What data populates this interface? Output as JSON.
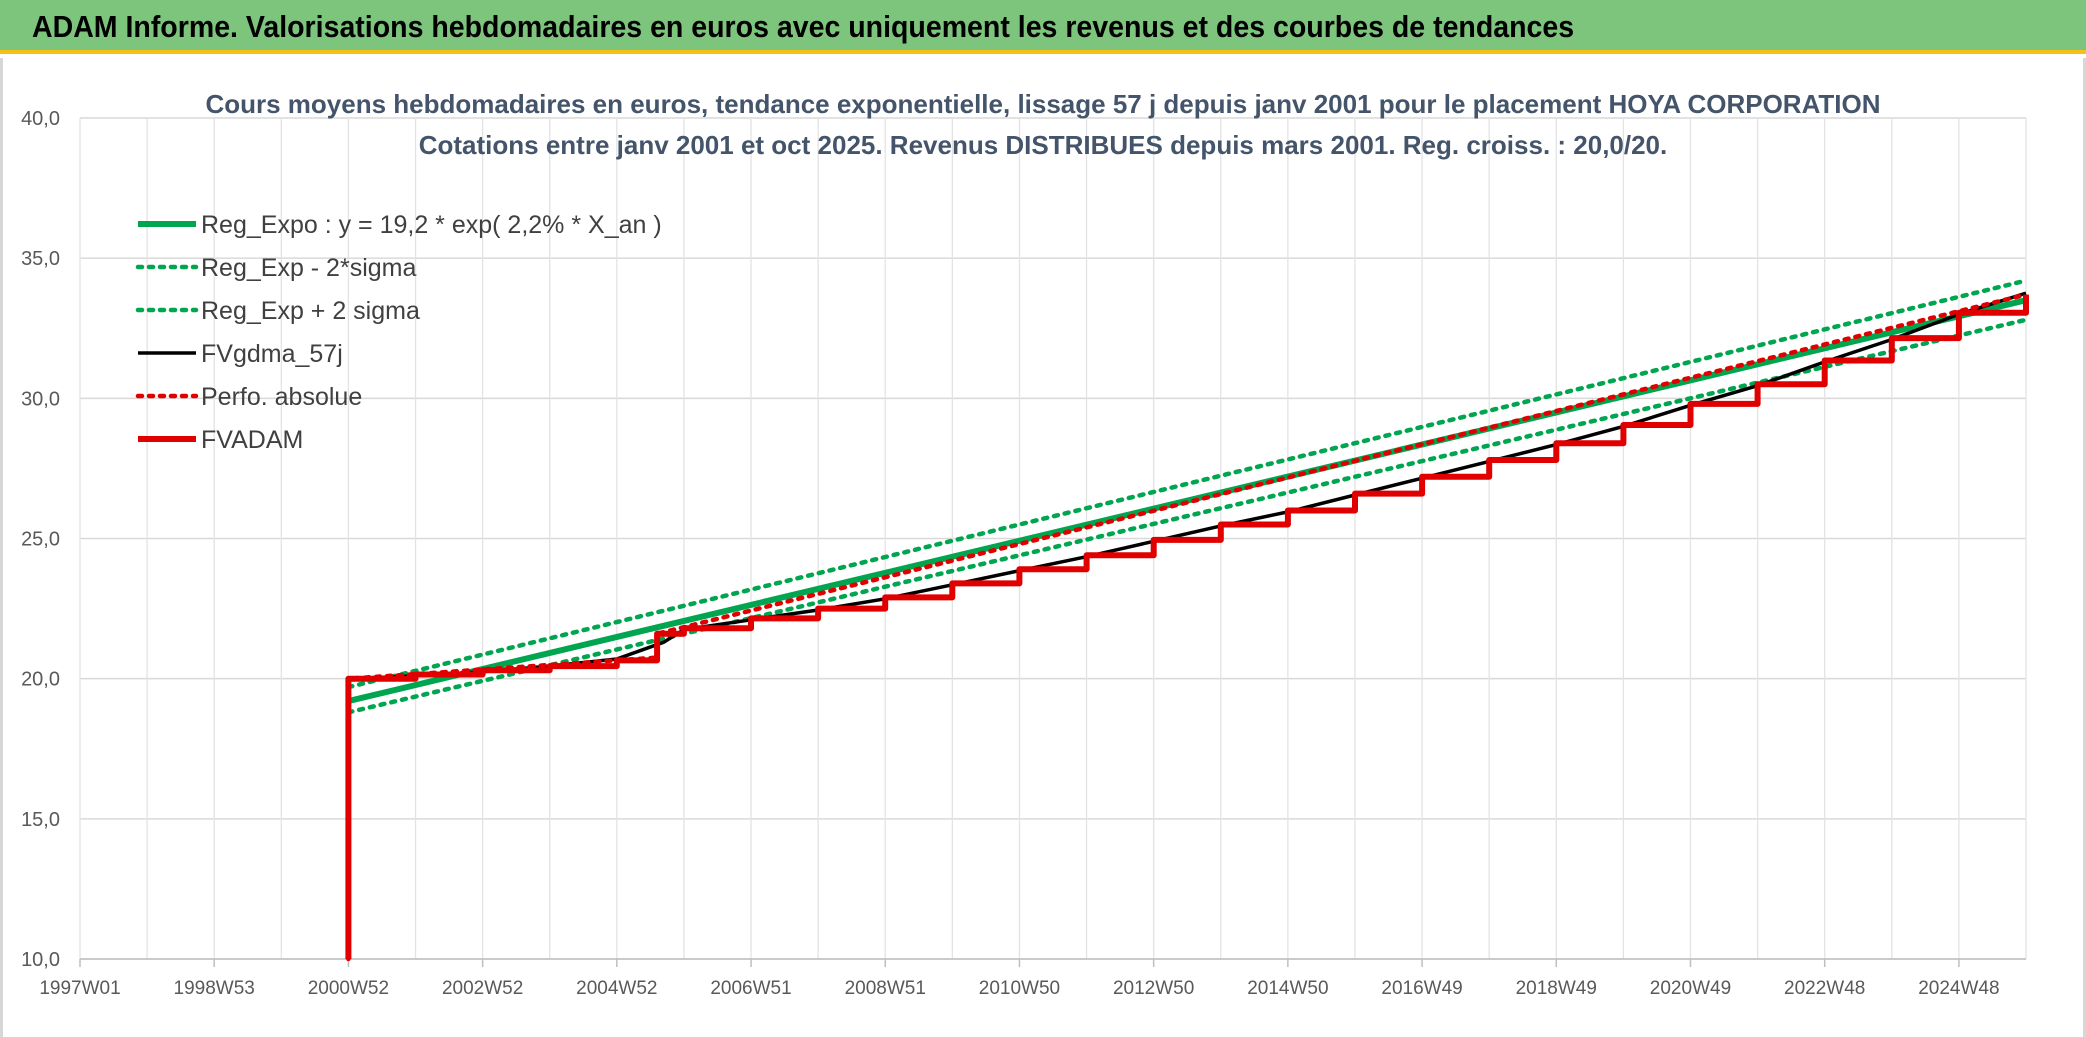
{
  "banner": {
    "title": "ADAM Informe. Valorisations hebdomadaires en euros avec uniquement les revenus et des courbes de tendances",
    "color": "#7dc47d",
    "accent": "#f2c21b"
  },
  "chart_data": {
    "type": "line",
    "title_line1": "Cours moyens hebdomadaires en euros, tendance exponentielle, lissage 57 j depuis janv 2001 pour le placement HOYA CORPORATION",
    "title_line2": "Cotations entre janv 2001 et oct 2025. Revenus DISTRIBUES depuis mars 2001. Reg. croiss. : 20,0/20.",
    "xlabel": "",
    "ylabel": "",
    "ylim": [
      10,
      40
    ],
    "xlim": [
      1997.0,
      2026.0
    ],
    "y_ticks": [
      "10,0",
      "15,0",
      "20,0",
      "25,0",
      "30,0",
      "35,0",
      "40,0"
    ],
    "x_ticks": [
      {
        "label": "1997W01",
        "x": 1997.0
      },
      {
        "label": "1998W53",
        "x": 1999.0
      },
      {
        "label": "2000W52",
        "x": 2001.0
      },
      {
        "label": "2002W52",
        "x": 2003.0
      },
      {
        "label": "2004W52",
        "x": 2005.0
      },
      {
        "label": "2006W51",
        "x": 2007.0
      },
      {
        "label": "2008W51",
        "x": 2009.0
      },
      {
        "label": "2010W50",
        "x": 2011.0
      },
      {
        "label": "2012W50",
        "x": 2013.0
      },
      {
        "label": "2014W50",
        "x": 2015.0
      },
      {
        "label": "2016W49",
        "x": 2017.0
      },
      {
        "label": "2018W49",
        "x": 2019.0
      },
      {
        "label": "2020W49",
        "x": 2021.0
      },
      {
        "label": "2022W48",
        "x": 2023.0
      },
      {
        "label": "2024W48",
        "x": 2025.0
      }
    ],
    "grid": true,
    "legend_position": "top-left",
    "series": [
      {
        "name": "Reg_Expo : y = 19,2 * exp( 2,2% *  X_an )",
        "color": "#00a550",
        "style": "solid-thick",
        "x": [
          2001.0,
          2026.0
        ],
        "y": [
          19.2,
          33.5
        ]
      },
      {
        "name": "Reg_Exp - 2*sigma",
        "color": "#00a550",
        "style": "dotted",
        "x": [
          2001.0,
          2026.0
        ],
        "y": [
          18.8,
          32.8
        ]
      },
      {
        "name": "Reg_Exp + 2 sigma",
        "color": "#00a550",
        "style": "dotted",
        "x": [
          2001.0,
          2026.0
        ],
        "y": [
          19.7,
          34.2
        ]
      },
      {
        "name": "FVgdma_57j",
        "color": "#000000",
        "style": "solid",
        "x": [
          2001.0,
          2001.0,
          2002.0,
          2003.0,
          2004.0,
          2005.0,
          2005.7,
          2006.0,
          2007.0,
          2008.0,
          2009.0,
          2010.0,
          2011.0,
          2012.0,
          2013.0,
          2014.0,
          2015.0,
          2016.0,
          2017.0,
          2018.0,
          2019.0,
          2020.0,
          2021.0,
          2022.0,
          2023.0,
          2024.0,
          2025.0,
          2026.0
        ],
        "y": [
          10.0,
          20.0,
          20.1,
          20.25,
          20.45,
          20.7,
          21.3,
          21.75,
          22.1,
          22.45,
          22.85,
          23.35,
          23.85,
          24.35,
          24.9,
          25.45,
          25.95,
          26.55,
          27.15,
          27.75,
          28.35,
          29.0,
          29.75,
          30.45,
          31.3,
          32.1,
          33.0,
          33.75
        ]
      },
      {
        "name": "Perfo. absolue",
        "color": "#e00000",
        "style": "dotted",
        "x": [
          2001.0,
          2001.0,
          2005.6,
          2005.6,
          2026.0
        ],
        "y": [
          10.0,
          20.0,
          20.75,
          21.6,
          33.7
        ]
      },
      {
        "name": "FVADAM",
        "color": "#e00000",
        "style": "stepped-thick",
        "x": [
          2001.0,
          2001.0,
          2002.0,
          2003.0,
          2004.0,
          2005.0,
          2005.6,
          2006.0,
          2007.0,
          2008.0,
          2009.0,
          2010.0,
          2011.0,
          2012.0,
          2013.0,
          2014.0,
          2015.0,
          2016.0,
          2017.0,
          2018.0,
          2019.0,
          2020.0,
          2021.0,
          2022.0,
          2023.0,
          2024.0,
          2025.0,
          2026.0
        ],
        "y": [
          10.0,
          20.0,
          20.15,
          20.3,
          20.45,
          20.65,
          21.6,
          21.8,
          22.15,
          22.5,
          22.9,
          23.4,
          23.9,
          24.4,
          24.95,
          25.5,
          26.0,
          26.6,
          27.2,
          27.8,
          28.4,
          29.05,
          29.8,
          30.5,
          31.35,
          32.15,
          33.05,
          33.7
        ]
      }
    ]
  }
}
